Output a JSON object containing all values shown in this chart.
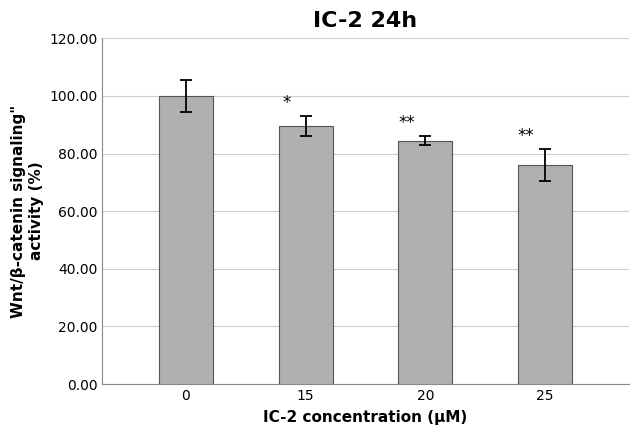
{
  "title": "IC-2 24h",
  "xlabel": "IC-2 concentration (μM)",
  "ylabel": "Wnt/β-catenin signaling\"\nactivity (%)",
  "categories": [
    "0",
    "15",
    "20",
    "25"
  ],
  "values": [
    100.0,
    89.5,
    84.5,
    76.0
  ],
  "errors": [
    5.5,
    3.5,
    1.5,
    5.5
  ],
  "bar_color": "#b0b0b0",
  "bar_edge_color": "#555555",
  "ylim": [
    0,
    120
  ],
  "yticks": [
    0.0,
    20.0,
    40.0,
    60.0,
    80.0,
    100.0,
    120.0
  ],
  "significance": [
    "",
    "*",
    "**",
    "**"
  ],
  "title_fontsize": 16,
  "axis_label_fontsize": 11,
  "tick_fontsize": 10,
  "sig_fontsize": 12,
  "background_color": "#ffffff",
  "grid_color": "#cccccc",
  "bar_width": 0.45,
  "xlim_left": -0.7,
  "xlim_right": 3.7
}
